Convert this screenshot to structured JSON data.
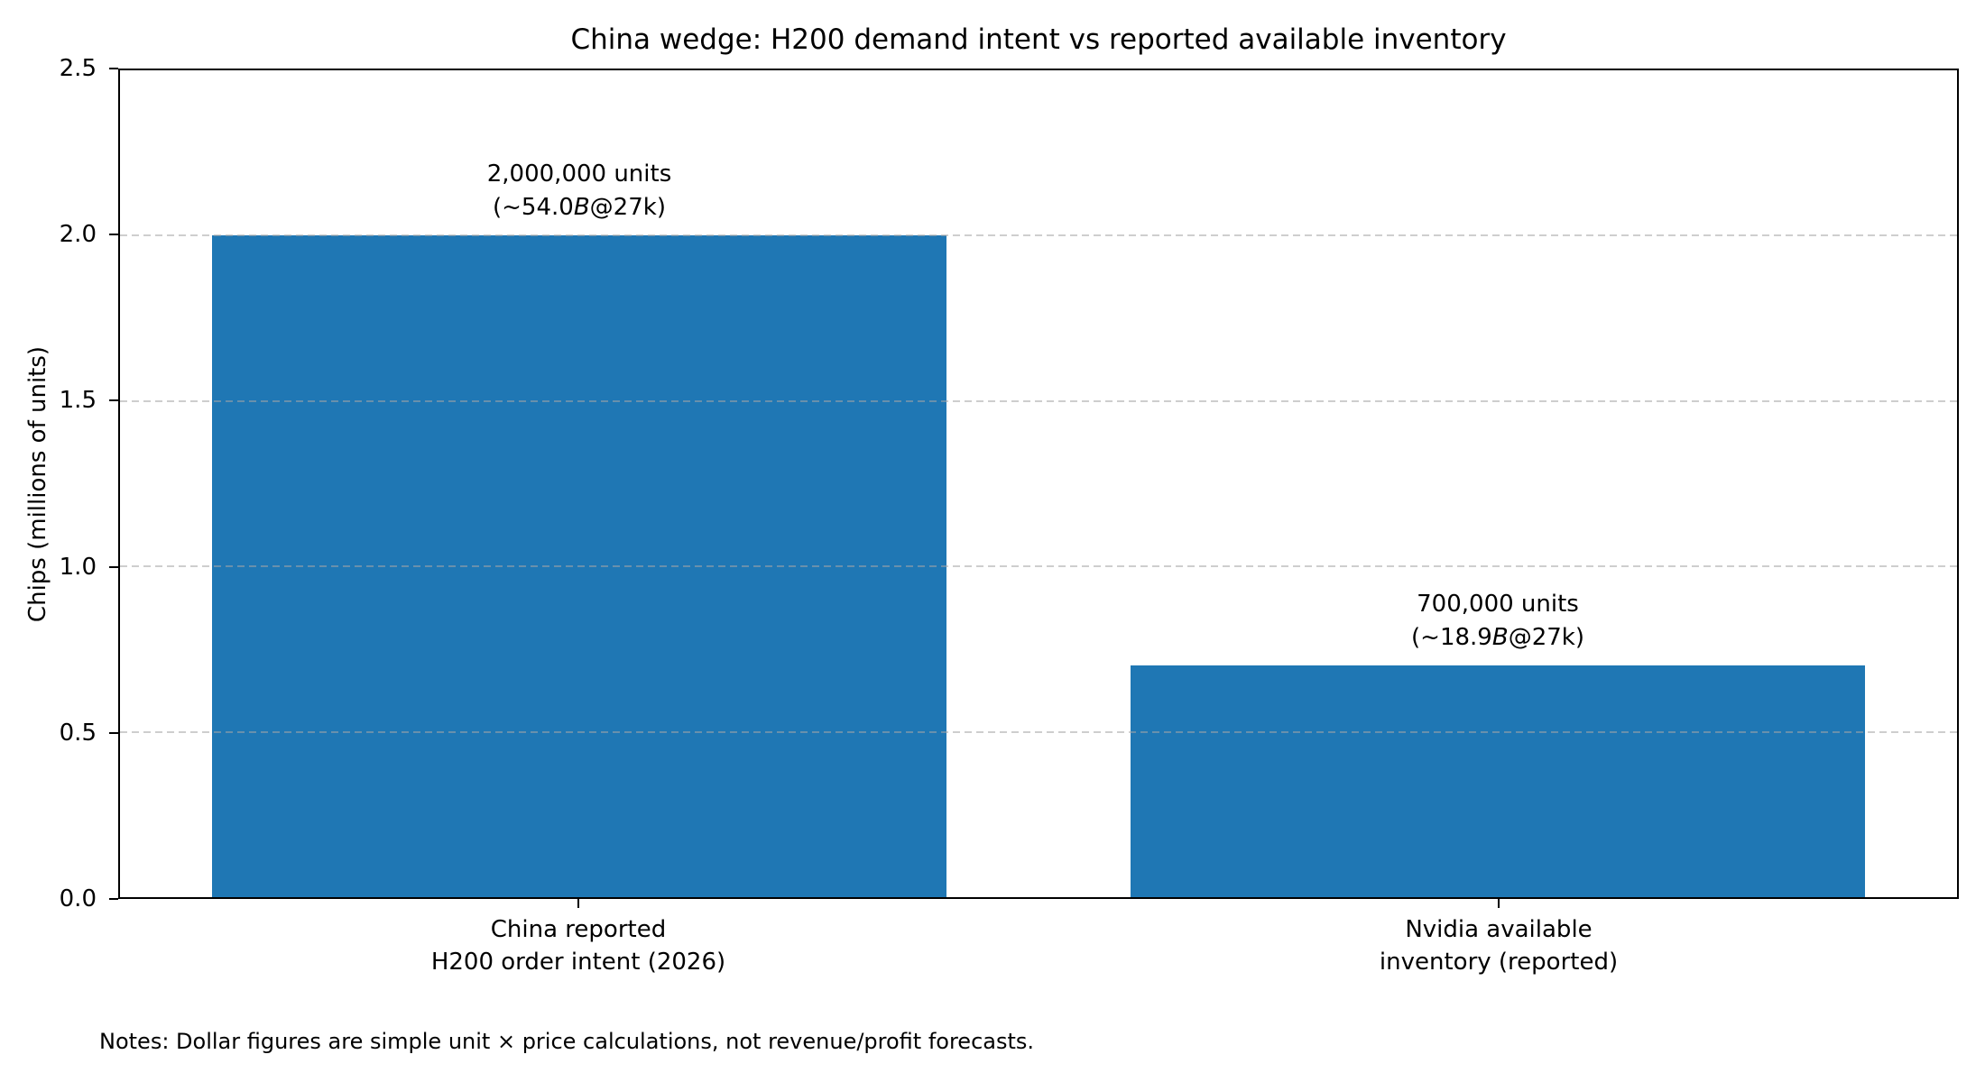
{
  "chart_data": {
    "type": "bar",
    "title": "China wedge: H200 demand intent vs reported available inventory",
    "xlabel": "",
    "ylabel": "Chips (millions of units)",
    "ylim": [
      0,
      2.5
    ],
    "yticks": [
      0.0,
      0.5,
      1.0,
      1.5,
      2.0,
      2.5
    ],
    "grid": {
      "axis": "y",
      "linestyle": "dashed",
      "color": "#a5a5a5",
      "alpha": 0.55
    },
    "legend": "none",
    "bar_color": "#1f77b4",
    "categories": [
      [
        "China reported",
        "H200 order intent (2026)"
      ],
      [
        "Nvidia available",
        "inventory (reported)"
      ]
    ],
    "values": [
      2.0,
      0.7
    ],
    "annotations": [
      {
        "line1": "2,000,000 units",
        "line2": {
          "pre": "(~54.0",
          "italic": "B",
          "post": "@27k)"
        }
      },
      {
        "line1": "700,000 units",
        "line2": {
          "pre": "(~18.9",
          "italic": "B",
          "post": "@27k)"
        }
      }
    ],
    "note": "Notes: Dollar figures are simple unit × price calculations, not revenue/profit forecasts."
  }
}
